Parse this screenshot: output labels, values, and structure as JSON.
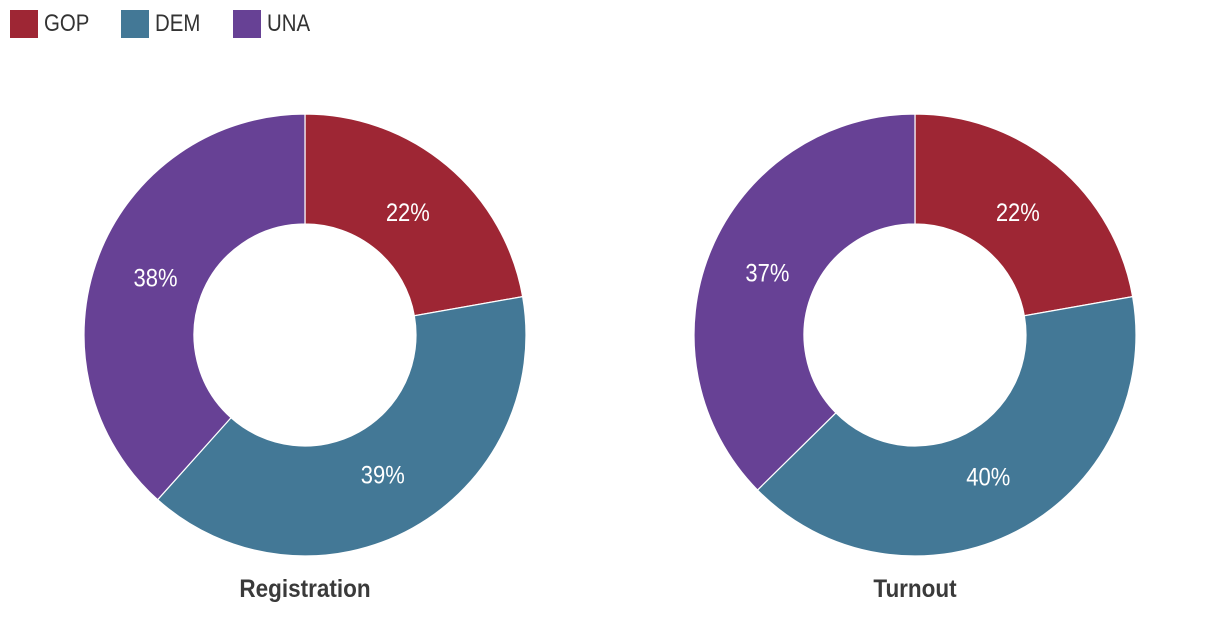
{
  "legend": [
    {
      "name": "GOP",
      "color": "#9e2634"
    },
    {
      "name": "DEM",
      "color": "#437896"
    },
    {
      "name": "UNA",
      "color": "#674195"
    }
  ],
  "chart_data": [
    {
      "type": "pie",
      "variant": "donut",
      "title": "Registration",
      "categories": [
        "GOP",
        "DEM",
        "UNA"
      ],
      "values": [
        22,
        39,
        38
      ],
      "labels": [
        "22%",
        "39%",
        "38%"
      ],
      "colors": [
        "#9e2634",
        "#437896",
        "#674195"
      ],
      "legend_position": "top-left"
    },
    {
      "type": "pie",
      "variant": "donut",
      "title": "Turnout",
      "categories": [
        "GOP",
        "DEM",
        "UNA"
      ],
      "values": [
        22,
        40,
        37
      ],
      "labels": [
        "22%",
        "40%",
        "37%"
      ],
      "colors": [
        "#9e2634",
        "#437896",
        "#674195"
      ],
      "legend_position": "top-left"
    }
  ]
}
